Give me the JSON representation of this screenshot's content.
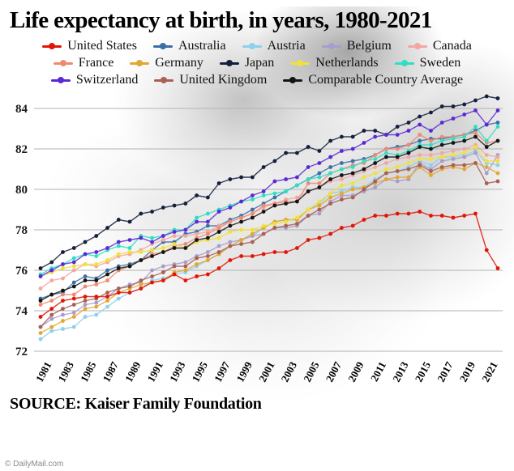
{
  "title": "Life expectancy at birth, in years, 1980-2021",
  "source": "SOURCE: Kaiser Family Foundation",
  "copyright": "© DailyMail.com",
  "chart_data": {
    "type": "line",
    "marker_style": "dots",
    "title": "Life expectancy at birth, in years, 1980-2021",
    "xlabel": "",
    "ylabel": "",
    "grid": true,
    "legend_position": "top",
    "ylim": [
      72,
      84
    ],
    "y_ticks": [
      72,
      74,
      76,
      78,
      80,
      82,
      84
    ],
    "x": [
      1980,
      1981,
      1982,
      1983,
      1984,
      1985,
      1986,
      1987,
      1988,
      1989,
      1990,
      1991,
      1992,
      1993,
      1994,
      1995,
      1996,
      1997,
      1998,
      1999,
      2000,
      2001,
      2002,
      2003,
      2004,
      2005,
      2006,
      2007,
      2008,
      2009,
      2010,
      2011,
      2012,
      2013,
      2014,
      2015,
      2016,
      2017,
      2018,
      2019,
      2020,
      2021
    ],
    "x_tick_labels": [
      1981,
      1983,
      1985,
      1987,
      1989,
      1991,
      1993,
      1995,
      1997,
      1999,
      2001,
      2003,
      2005,
      2007,
      2009,
      2011,
      2013,
      2015,
      2017,
      2019,
      2021
    ],
    "series": [
      {
        "name": "United States",
        "color": "#e01505",
        "values": [
          73.7,
          74.1,
          74.5,
          74.6,
          74.7,
          74.7,
          74.7,
          74.9,
          74.9,
          75.1,
          75.4,
          75.5,
          75.8,
          75.5,
          75.7,
          75.8,
          76.1,
          76.5,
          76.7,
          76.7,
          76.8,
          76.9,
          76.9,
          77.1,
          77.5,
          77.6,
          77.8,
          78.1,
          78.2,
          78.5,
          78.7,
          78.7,
          78.8,
          78.8,
          78.9,
          78.7,
          78.7,
          78.6,
          78.7,
          78.8,
          77.0,
          76.1
        ]
      },
      {
        "name": "Australia",
        "color": "#3a6ea5",
        "values": [
          74.6,
          74.8,
          74.9,
          75.4,
          75.7,
          75.6,
          76.0,
          76.2,
          76.3,
          76.5,
          77.0,
          77.4,
          77.4,
          77.8,
          77.9,
          78.2,
          78.2,
          78.5,
          78.7,
          79.0,
          79.3,
          79.6,
          79.9,
          80.2,
          80.5,
          80.8,
          81.1,
          81.3,
          81.4,
          81.5,
          81.7,
          82.0,
          82.1,
          82.2,
          82.4,
          82.5,
          82.5,
          82.6,
          82.7,
          82.9,
          83.2,
          83.3
        ]
      },
      {
        "name": "Austria",
        "color": "#8ed0ec",
        "values": [
          72.6,
          73.0,
          73.1,
          73.2,
          73.7,
          73.8,
          74.2,
          74.6,
          74.9,
          75.1,
          75.5,
          75.6,
          75.8,
          75.9,
          76.2,
          76.5,
          76.8,
          77.2,
          77.5,
          77.7,
          78.1,
          78.4,
          78.5,
          78.5,
          79.0,
          79.3,
          79.8,
          79.9,
          80.1,
          80.1,
          80.5,
          80.8,
          80.9,
          81.1,
          81.4,
          81.2,
          81.6,
          81.6,
          81.7,
          81.9,
          81.3,
          81.2
        ]
      },
      {
        "name": "Belgium",
        "color": "#a89cce",
        "values": [
          73.2,
          73.6,
          73.8,
          73.9,
          74.3,
          74.4,
          74.7,
          75.1,
          75.3,
          75.4,
          76.0,
          76.2,
          76.3,
          76.4,
          76.7,
          76.9,
          77.2,
          77.4,
          77.5,
          77.7,
          77.8,
          78.1,
          78.1,
          78.2,
          78.7,
          78.8,
          79.4,
          79.7,
          79.7,
          79.9,
          80.1,
          80.5,
          80.4,
          80.5,
          81.3,
          81.0,
          81.4,
          81.5,
          81.6,
          81.8,
          80.8,
          81.7
        ]
      },
      {
        "name": "Canada",
        "color": "#f3a6a2",
        "values": [
          75.1,
          75.5,
          75.6,
          76.0,
          76.3,
          76.2,
          76.4,
          76.7,
          76.8,
          77.0,
          77.3,
          77.5,
          77.7,
          77.7,
          77.8,
          77.9,
          78.2,
          78.4,
          78.6,
          78.8,
          79.1,
          79.3,
          79.5,
          79.6,
          79.9,
          80.1,
          80.4,
          80.5,
          80.7,
          80.9,
          81.1,
          81.3,
          81.5,
          81.6,
          81.7,
          81.7,
          81.8,
          81.9,
          82.0,
          82.2,
          81.7,
          81.6
        ]
      },
      {
        "name": "France",
        "color": "#ef8a71",
        "values": [
          74.3,
          74.5,
          74.8,
          74.8,
          75.2,
          75.3,
          75.5,
          76.0,
          76.2,
          76.5,
          76.8,
          76.9,
          77.2,
          77.3,
          77.6,
          77.8,
          78.1,
          78.4,
          78.6,
          78.8,
          79.2,
          79.3,
          79.4,
          79.4,
          80.3,
          80.3,
          80.8,
          81.0,
          81.2,
          81.3,
          81.7,
          82.0,
          82.0,
          82.2,
          82.7,
          82.4,
          82.6,
          82.6,
          82.7,
          82.8,
          82.3,
          82.4
        ]
      },
      {
        "name": "Germany",
        "color": "#e2a731",
        "values": [
          72.9,
          73.2,
          73.5,
          73.7,
          74.1,
          74.2,
          74.5,
          74.9,
          75.1,
          75.3,
          75.4,
          75.5,
          75.9,
          76.0,
          76.3,
          76.5,
          76.8,
          77.2,
          77.5,
          77.8,
          78.1,
          78.4,
          78.5,
          78.5,
          79.0,
          79.2,
          79.6,
          79.8,
          80.0,
          80.1,
          80.3,
          80.5,
          80.6,
          80.6,
          81.1,
          80.7,
          81.0,
          81.1,
          81.0,
          81.3,
          81.1,
          80.8
        ]
      },
      {
        "name": "Japan",
        "color": "#131f3c",
        "values": [
          76.1,
          76.4,
          76.9,
          77.1,
          77.4,
          77.7,
          78.1,
          78.5,
          78.4,
          78.8,
          78.9,
          79.1,
          79.2,
          79.3,
          79.7,
          79.6,
          80.3,
          80.5,
          80.6,
          80.6,
          81.1,
          81.4,
          81.8,
          81.8,
          82.1,
          81.9,
          82.4,
          82.6,
          82.6,
          82.9,
          82.9,
          82.7,
          83.1,
          83.3,
          83.6,
          83.8,
          84.1,
          84.1,
          84.2,
          84.4,
          84.6,
          84.5
        ]
      },
      {
        "name": "Netherlands",
        "color": "#f0e13c",
        "values": [
          75.7,
          75.9,
          76.1,
          76.2,
          76.3,
          76.3,
          76.5,
          76.8,
          76.9,
          76.9,
          77.0,
          77.1,
          77.3,
          77.1,
          77.4,
          77.5,
          77.6,
          77.9,
          78.0,
          78.0,
          78.2,
          78.3,
          78.4,
          78.6,
          79.0,
          79.4,
          79.8,
          80.2,
          80.3,
          80.6,
          80.8,
          81.0,
          81.1,
          81.3,
          81.5,
          81.5,
          81.6,
          81.7,
          81.8,
          82.1,
          81.4,
          81.4
        ]
      },
      {
        "name": "Sweden",
        "color": "#2ddfc3",
        "values": [
          75.8,
          76.1,
          76.3,
          76.6,
          76.8,
          76.7,
          77.0,
          77.2,
          77.1,
          77.7,
          77.6,
          77.7,
          78.0,
          78.0,
          78.6,
          78.8,
          79.0,
          79.2,
          79.4,
          79.5,
          79.7,
          79.8,
          79.9,
          80.2,
          80.5,
          80.6,
          80.8,
          81.0,
          81.1,
          81.4,
          81.5,
          81.8,
          81.7,
          81.9,
          82.2,
          82.2,
          82.4,
          82.5,
          82.6,
          83.1,
          82.4,
          83.1
        ]
      },
      {
        "name": "Switzerland",
        "color": "#5a28d4",
        "values": [
          75.7,
          76.0,
          76.3,
          76.4,
          76.8,
          76.9,
          77.1,
          77.4,
          77.5,
          77.6,
          77.4,
          77.7,
          77.9,
          78.0,
          78.4,
          78.4,
          78.9,
          79.1,
          79.4,
          79.7,
          79.9,
          80.4,
          80.5,
          80.6,
          81.1,
          81.3,
          81.6,
          81.9,
          82.0,
          82.3,
          82.6,
          82.7,
          82.7,
          82.9,
          83.2,
          82.9,
          83.3,
          83.5,
          83.7,
          83.9,
          83.2,
          83.9
        ]
      },
      {
        "name": "United Kingdom",
        "color": "#a86054",
        "values": [
          73.2,
          73.8,
          74.1,
          74.3,
          74.5,
          74.6,
          74.9,
          75.1,
          75.2,
          75.5,
          75.7,
          75.9,
          76.2,
          76.2,
          76.6,
          76.7,
          76.9,
          77.2,
          77.3,
          77.4,
          77.8,
          78.1,
          78.2,
          78.3,
          78.7,
          79.0,
          79.3,
          79.5,
          79.6,
          80.0,
          80.4,
          80.8,
          80.9,
          81.0,
          81.2,
          80.9,
          81.1,
          81.2,
          81.2,
          81.3,
          80.3,
          80.4
        ]
      },
      {
        "name": "Comparable Country Average",
        "color": "#141414",
        "values": [
          74.5,
          74.8,
          75.0,
          75.2,
          75.5,
          75.5,
          75.8,
          76.1,
          76.2,
          76.5,
          76.7,
          76.9,
          77.1,
          77.1,
          77.5,
          77.6,
          77.9,
          78.2,
          78.4,
          78.6,
          78.9,
          79.2,
          79.3,
          79.4,
          79.9,
          80.1,
          80.5,
          80.7,
          80.8,
          81.0,
          81.3,
          81.6,
          81.6,
          81.8,
          82.1,
          82.0,
          82.2,
          82.3,
          82.4,
          82.6,
          82.1,
          82.4
        ]
      }
    ]
  }
}
